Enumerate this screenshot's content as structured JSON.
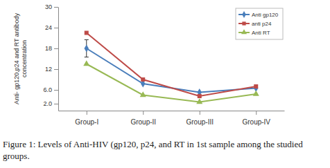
{
  "chart_data": {
    "type": "line",
    "title": "Figure 1: Levels of Anti-HIV (gp120, p24, and RT in 1st sample among the studied groups.",
    "y_label": "Anti- gp120,p24 and RT antibody concentration",
    "categories": [
      "Group-I",
      "Group-II",
      "Group-III",
      "Group-IV"
    ],
    "series": [
      {
        "name": "Anti gp120",
        "color": "#4a7ebb",
        "marker": "diamond",
        "values": [
          18,
          7.8,
          5.3,
          6.5
        ],
        "errors": [
          2.5,
          null,
          null,
          null
        ]
      },
      {
        "name": "anti p24",
        "color": "#be4b48",
        "marker": "square",
        "values": [
          22.5,
          9,
          4.2,
          7
        ]
      },
      {
        "name": "Anti RT",
        "color": "#98b954",
        "marker": "triangle",
        "values": [
          13.5,
          4.5,
          2.5,
          4.8
        ]
      }
    ],
    "ylim": [
      0,
      30
    ],
    "yticks": [
      {
        "value": 2,
        "label": "2.0"
      },
      {
        "value": 6,
        "label": "6.0"
      },
      12,
      18,
      24,
      30
    ],
    "grid": false,
    "legend": "upper right"
  }
}
